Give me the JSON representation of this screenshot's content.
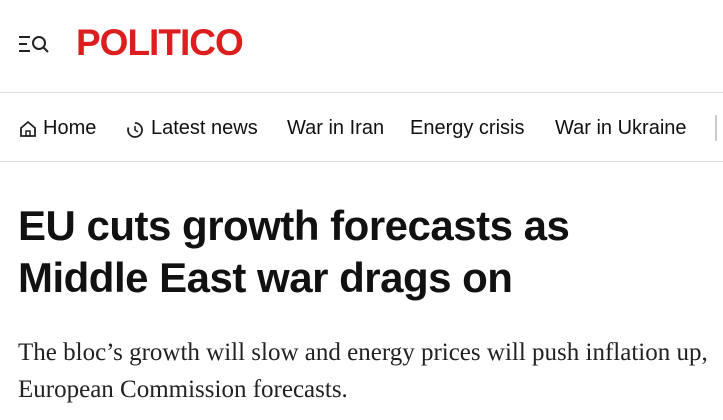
{
  "header": {
    "logo": "POLITICO"
  },
  "nav": {
    "items": [
      "Home",
      "Latest news",
      "War in Iran",
      "Energy crisis",
      "War in Ukraine"
    ]
  },
  "article": {
    "headline": "EU cuts growth forecasts as Middle East war drags on",
    "subtitle": "The bloc’s growth will slow and energy prices will push inflation up, European Commission forecasts."
  }
}
